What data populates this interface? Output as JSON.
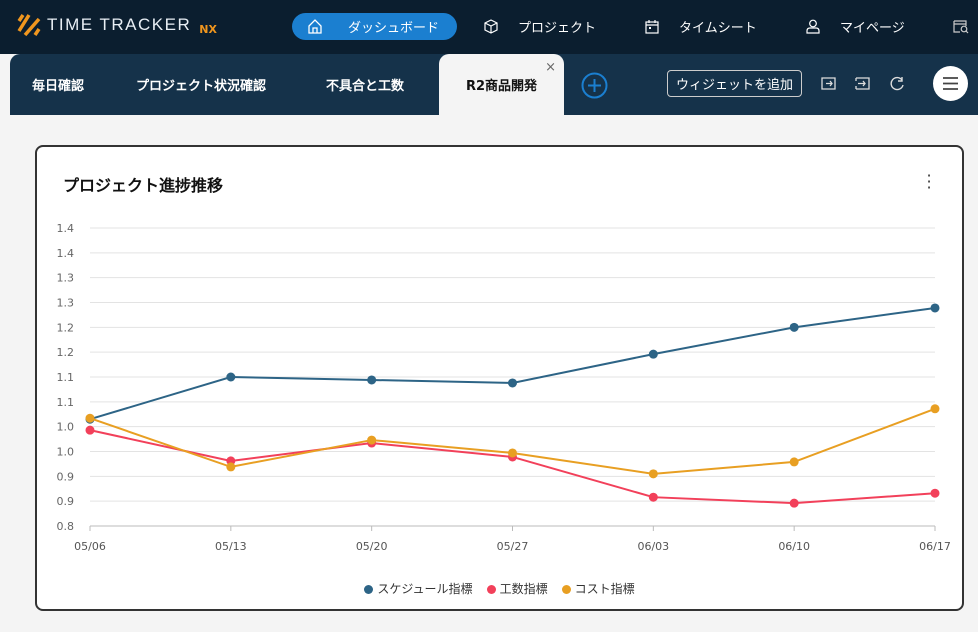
{
  "app": {
    "logo_text": "TIME TRACKER",
    "logo_suffix": "NX"
  },
  "nav": [
    {
      "label": "ダッシュボード",
      "icon": "home-icon"
    },
    {
      "label": "プロジェクト",
      "icon": "cube-icon"
    },
    {
      "label": "タイムシート",
      "icon": "calendar-icon"
    },
    {
      "label": "マイページ",
      "icon": "user-icon"
    }
  ],
  "tabs": [
    {
      "label": "毎日確認"
    },
    {
      "label": "プロジェクト状況確認"
    },
    {
      "label": "不具合と工数"
    },
    {
      "label": "R2商品開発",
      "active": true
    }
  ],
  "toolbar": {
    "add_widget": "ウィジェットを追加",
    "close": "×"
  },
  "colors": {
    "schedule": "#2d6486",
    "work": "#f2405a",
    "cost": "#e89f22",
    "accent": "#1b7fd0"
  },
  "chart_data": {
    "type": "line",
    "title": "プロジェクト進捗推移",
    "x": [
      "05/06",
      "05/13",
      "05/20",
      "05/27",
      "06/03",
      "06/10",
      "06/17"
    ],
    "yticks": [
      "0.8",
      "0.9",
      "0.9",
      "1.0",
      "1.0",
      "1.1",
      "1.1",
      "1.2",
      "1.2",
      "1.3",
      "1.3",
      "1.4",
      "1.4"
    ],
    "ylim": [
      0.8,
      1.4
    ],
    "grid": true,
    "legend_position": "bottom",
    "series": [
      {
        "name": "スケジュール指標",
        "color": "#2d6486",
        "values": [
          1.015,
          1.1,
          1.094,
          1.088,
          1.146,
          1.2,
          1.239
        ]
      },
      {
        "name": "工数指標",
        "color": "#f2405a",
        "values": [
          0.993,
          0.931,
          0.967,
          0.939,
          0.858,
          0.846,
          0.866
        ]
      },
      {
        "name": "コスト指標",
        "color": "#e89f22",
        "values": [
          1.017,
          0.919,
          0.973,
          0.947,
          0.905,
          0.929,
          1.036
        ]
      }
    ]
  }
}
